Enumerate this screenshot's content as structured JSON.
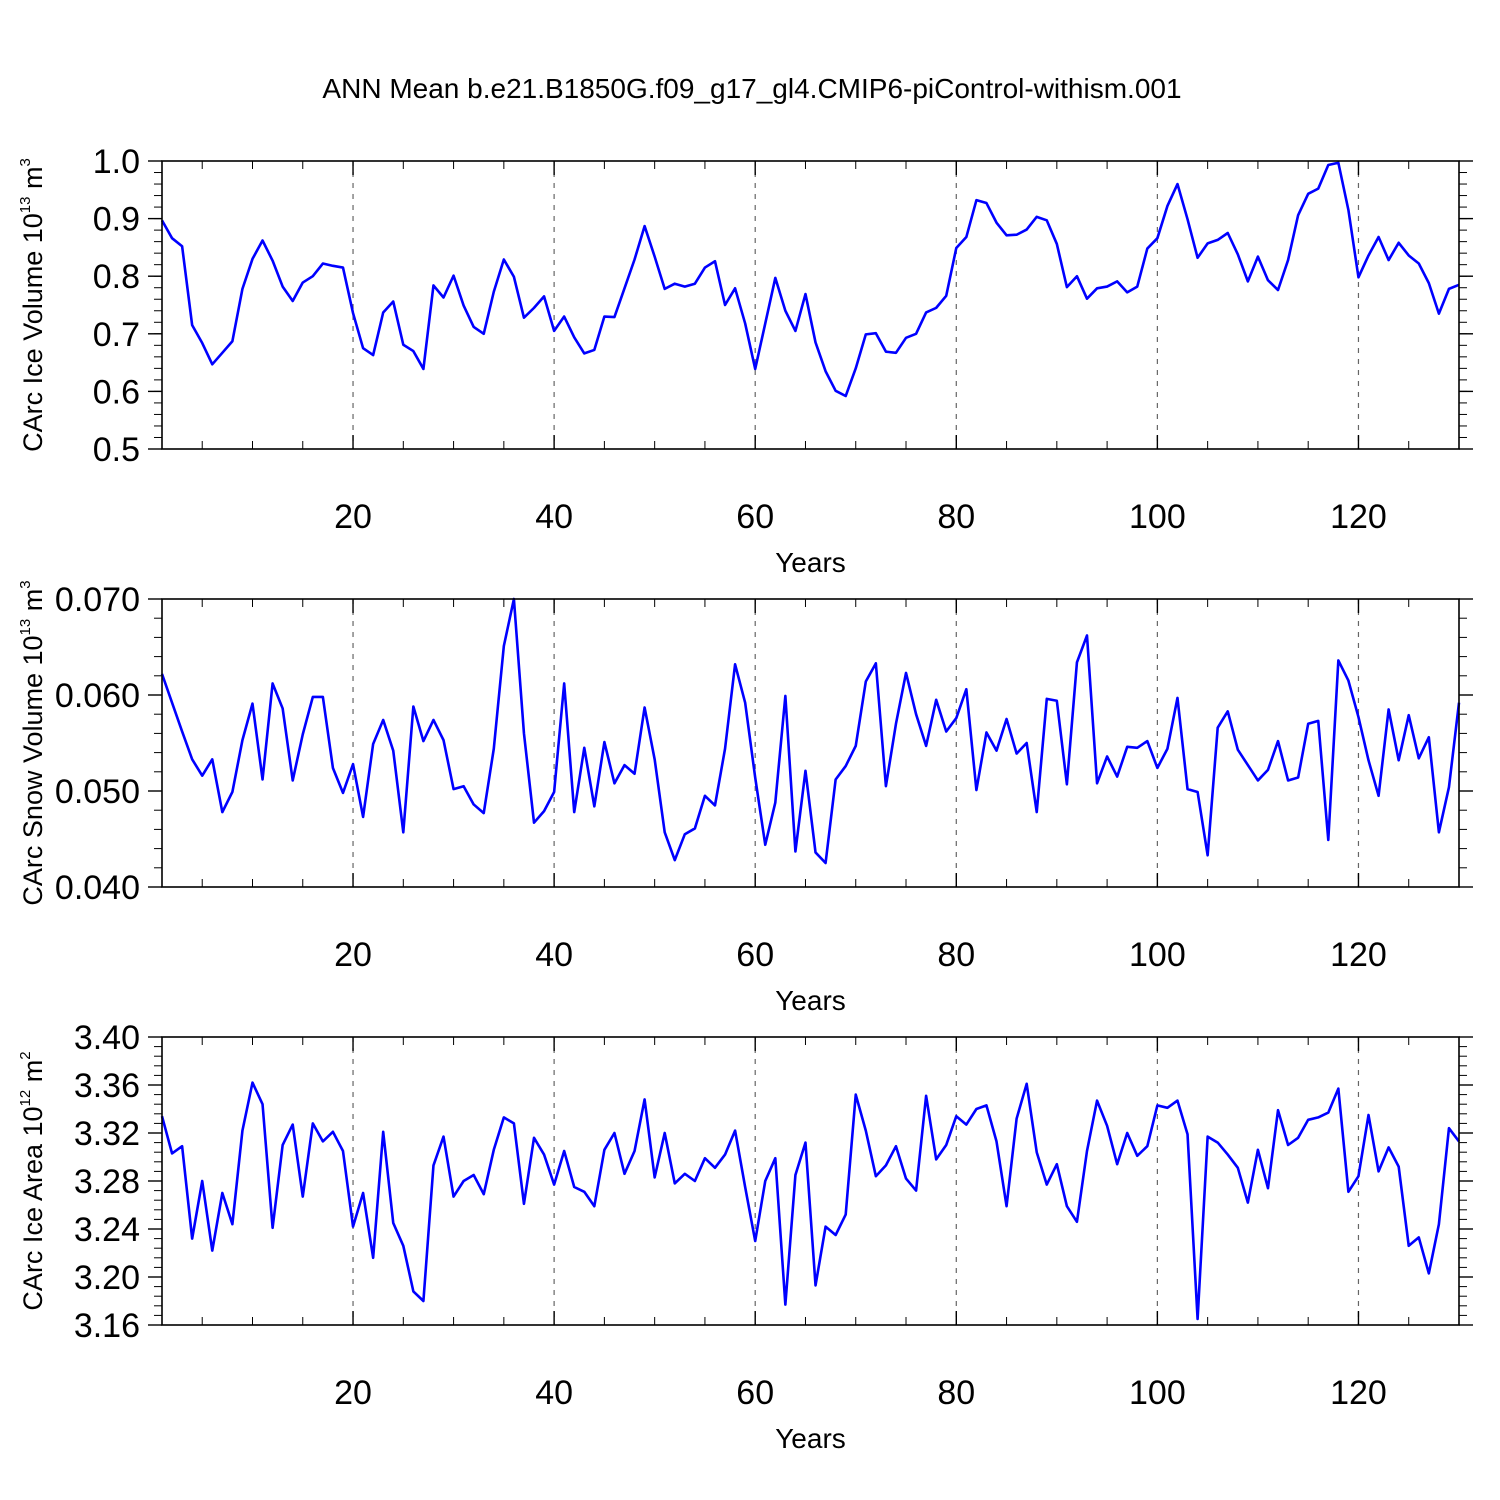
{
  "title": "ANN Mean b.e21.B1850G.f09_g17_gl4.CMIP6-piControl-withism.001",
  "colors": {
    "line": "#0000ff",
    "axes": "#000000",
    "grid": "#666666"
  },
  "chart_data": [
    {
      "type": "line",
      "ylabel": "CArc Ice Volume 10",
      "ylabel_exp": "13",
      "ylabel_unit": " m",
      "ylabel_unit_exp": "3",
      "xlabel": "Years",
      "xlim": [
        1,
        130
      ],
      "ylim": [
        0.5,
        1.0
      ],
      "xticks": [
        20,
        40,
        60,
        80,
        100,
        120
      ],
      "yticks": [
        0.5,
        0.6,
        0.7,
        0.8,
        0.9,
        1.0
      ],
      "ytick_labels": [
        "0.5",
        "0.6",
        "0.7",
        "0.8",
        "0.9",
        "1.0"
      ],
      "yminor_step": 0.02,
      "grid": "vertical dashed at major x ticks",
      "series": [
        {
          "values": [
            0.897,
            0.866,
            0.852,
            0.715,
            0.684,
            0.647,
            0.667,
            0.687,
            0.778,
            0.83,
            0.862,
            0.827,
            0.782,
            0.757,
            0.789,
            0.8,
            0.822,
            0.818,
            0.815,
            0.736,
            0.675,
            0.663,
            0.737,
            0.756,
            0.681,
            0.67,
            0.639,
            0.784,
            0.763,
            0.801,
            0.749,
            0.712,
            0.7,
            0.773,
            0.829,
            0.799,
            0.728,
            0.745,
            0.765,
            0.705,
            0.73,
            0.694,
            0.666,
            0.672,
            0.73,
            0.729,
            0.779,
            0.829,
            0.887,
            0.834,
            0.778,
            0.787,
            0.782,
            0.787,
            0.815,
            0.826,
            0.75,
            0.779,
            0.718,
            0.639,
            0.718,
            0.797,
            0.74,
            0.705,
            0.769,
            0.685,
            0.635,
            0.601,
            0.592,
            0.64,
            0.699,
            0.701,
            0.669,
            0.667,
            0.693,
            0.7,
            0.737,
            0.745,
            0.766,
            0.849,
            0.868,
            0.932,
            0.927,
            0.893,
            0.871,
            0.872,
            0.881,
            0.903,
            0.897,
            0.856,
            0.781,
            0.8,
            0.761,
            0.779,
            0.782,
            0.791,
            0.772,
            0.782,
            0.848,
            0.866,
            0.922,
            0.96,
            0.899,
            0.832,
            0.857,
            0.863,
            0.875,
            0.838,
            0.791,
            0.834,
            0.793,
            0.776,
            0.828,
            0.906,
            0.943,
            0.952,
            0.993,
            0.997,
            0.915,
            0.798,
            0.836,
            0.868,
            0.828,
            0.858,
            0.836,
            0.822,
            0.788,
            0.735,
            0.778,
            0.785
          ]
        }
      ]
    },
    {
      "type": "line",
      "ylabel": "CArc Snow Volume 10",
      "ylabel_exp": "13",
      "ylabel_unit": " m",
      "ylabel_unit_exp": "3",
      "xlabel": "Years",
      "xlim": [
        1,
        130
      ],
      "ylim": [
        0.04,
        0.07
      ],
      "xticks": [
        20,
        40,
        60,
        80,
        100,
        120
      ],
      "yticks": [
        0.04,
        0.05,
        0.06,
        0.07
      ],
      "ytick_labels": [
        "0.040",
        "0.050",
        "0.060",
        "0.070"
      ],
      "yminor_step": 0.002,
      "grid": "vertical dashed at major x ticks",
      "series": [
        {
          "values": [
            0.0622,
            0.0592,
            0.0562,
            0.0533,
            0.0516,
            0.0533,
            0.0478,
            0.0499,
            0.0553,
            0.0591,
            0.0512,
            0.0612,
            0.0586,
            0.0511,
            0.0559,
            0.0598,
            0.0598,
            0.0524,
            0.0498,
            0.0528,
            0.0473,
            0.0549,
            0.0574,
            0.0542,
            0.0457,
            0.0588,
            0.0552,
            0.0574,
            0.0553,
            0.0502,
            0.0505,
            0.0486,
            0.0477,
            0.0544,
            0.0651,
            0.07,
            0.056,
            0.0467,
            0.0479,
            0.0499,
            0.0612,
            0.0478,
            0.0545,
            0.0484,
            0.0551,
            0.0508,
            0.0527,
            0.0518,
            0.0587,
            0.0533,
            0.0457,
            0.0428,
            0.0455,
            0.0461,
            0.0495,
            0.0485,
            0.0544,
            0.0632,
            0.0592,
            0.0514,
            0.0444,
            0.0488,
            0.0599,
            0.0437,
            0.0521,
            0.0436,
            0.0425,
            0.0512,
            0.0526,
            0.0547,
            0.0614,
            0.0633,
            0.0505,
            0.057,
            0.0623,
            0.058,
            0.0547,
            0.0595,
            0.0562,
            0.0576,
            0.0606,
            0.0501,
            0.0561,
            0.0542,
            0.0575,
            0.0539,
            0.055,
            0.0478,
            0.0596,
            0.0594,
            0.0507,
            0.0634,
            0.0662,
            0.0508,
            0.0536,
            0.0515,
            0.0546,
            0.0545,
            0.0552,
            0.0524,
            0.0544,
            0.0597,
            0.0502,
            0.0499,
            0.0433,
            0.0566,
            0.0583,
            0.0543,
            0.0527,
            0.0511,
            0.0522,
            0.0552,
            0.0511,
            0.0514,
            0.057,
            0.0573,
            0.0449,
            0.0636,
            0.0615,
            0.0577,
            0.0532,
            0.0495,
            0.0585,
            0.0532,
            0.0579,
            0.0534,
            0.0556,
            0.0457,
            0.0504,
            0.0592
          ]
        }
      ]
    },
    {
      "type": "line",
      "ylabel": "CArc Ice Area 10",
      "ylabel_exp": "12",
      "ylabel_unit": " m",
      "ylabel_unit_exp": "2",
      "xlabel": "Years",
      "xlim": [
        1,
        130
      ],
      "ylim": [
        3.16,
        3.4
      ],
      "xticks": [
        20,
        40,
        60,
        80,
        100,
        120
      ],
      "yticks": [
        3.16,
        3.2,
        3.24,
        3.28,
        3.32,
        3.36,
        3.4
      ],
      "ytick_labels": [
        "3.16",
        "3.20",
        "3.24",
        "3.28",
        "3.32",
        "3.36",
        "3.40"
      ],
      "yminor_step": 0.008,
      "grid": "vertical dashed at major x ticks",
      "series": [
        {
          "values": [
            3.334,
            3.303,
            3.309,
            3.232,
            3.28,
            3.222,
            3.27,
            3.244,
            3.322,
            3.362,
            3.344,
            3.241,
            3.31,
            3.327,
            3.267,
            3.328,
            3.313,
            3.321,
            3.305,
            3.242,
            3.27,
            3.216,
            3.321,
            3.245,
            3.226,
            3.188,
            3.18,
            3.293,
            3.317,
            3.267,
            3.28,
            3.285,
            3.269,
            3.306,
            3.333,
            3.328,
            3.261,
            3.316,
            3.302,
            3.277,
            3.305,
            3.275,
            3.271,
            3.259,
            3.306,
            3.32,
            3.286,
            3.305,
            3.348,
            3.283,
            3.32,
            3.278,
            3.286,
            3.28,
            3.299,
            3.291,
            3.302,
            3.322,
            3.275,
            3.23,
            3.28,
            3.299,
            3.177,
            3.285,
            3.312,
            3.193,
            3.242,
            3.235,
            3.252,
            3.352,
            3.322,
            3.284,
            3.293,
            3.309,
            3.282,
            3.272,
            3.351,
            3.298,
            3.31,
            3.334,
            3.327,
            3.34,
            3.343,
            3.313,
            3.259,
            3.332,
            3.361,
            3.304,
            3.277,
            3.294,
            3.259,
            3.246,
            3.305,
            3.347,
            3.326,
            3.294,
            3.32,
            3.301,
            3.309,
            3.343,
            3.341,
            3.347,
            3.319,
            3.165,
            3.317,
            3.312,
            3.302,
            3.291,
            3.262,
            3.306,
            3.274,
            3.339,
            3.31,
            3.316,
            3.331,
            3.333,
            3.337,
            3.357,
            3.271,
            3.284,
            3.335,
            3.288,
            3.308,
            3.292,
            3.226,
            3.233,
            3.203,
            3.244,
            3.324,
            3.313
          ]
        }
      ]
    }
  ]
}
